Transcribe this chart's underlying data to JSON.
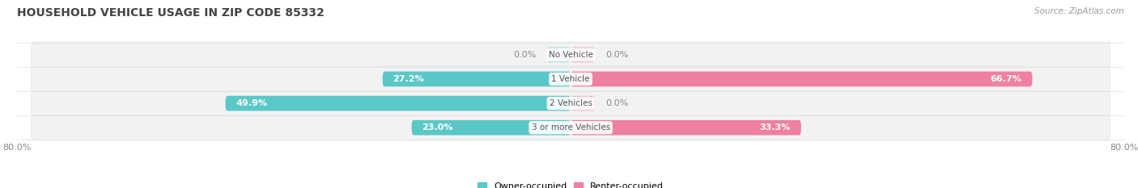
{
  "title": "HOUSEHOLD VEHICLE USAGE IN ZIP CODE 85332",
  "source": "Source: ZipAtlas.com",
  "categories": [
    "No Vehicle",
    "1 Vehicle",
    "2 Vehicles",
    "3 or more Vehicles"
  ],
  "owner_values": [
    0.0,
    27.2,
    49.9,
    23.0
  ],
  "renter_values": [
    0.0,
    66.7,
    0.0,
    33.3
  ],
  "owner_color": "#5BC8C8",
  "renter_color": "#F080A0",
  "owner_color_light": "#A8DEDE",
  "renter_color_light": "#F5B8CC",
  "row_bg_color_odd": "#F5F5F5",
  "row_bg_color_even": "#EBEBEB",
  "xlim_left": -80.0,
  "xlim_right": 80.0,
  "title_fontsize": 10,
  "source_fontsize": 7.5,
  "label_fontsize": 8,
  "category_fontsize": 7.5,
  "legend_fontsize": 8,
  "bar_height": 0.62,
  "background_color": "#FFFFFF"
}
